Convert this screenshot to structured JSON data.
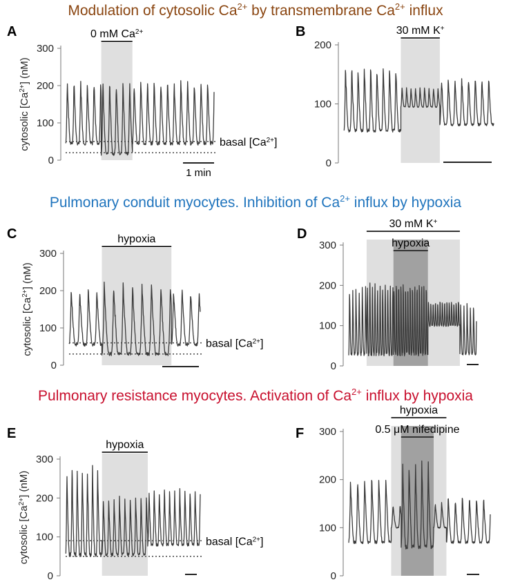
{
  "sections": [
    {
      "text": "Modulation of cytosolic Ca2+ by transmembrane Ca2+ influx",
      "color": "#8a4510"
    },
    {
      "text": "Pulmonary conduit myocytes. Inhibition of Ca2+ influx by hypoxia",
      "color": "#1f74bd"
    },
    {
      "text": "Pulmonary resistance myocytes. Activation of Ca2+ influx by hypoxia",
      "color": "#c8102e"
    }
  ],
  "chart_data": [
    {
      "id": "A",
      "panel_label": "A",
      "type": "line",
      "ylabel": "cytosolic [Ca2+] (nM)",
      "yticks": [
        0,
        100,
        200,
        300
      ],
      "ylim": [
        0,
        320
      ],
      "treatments": [
        {
          "label": "0 mM Ca2+",
          "start": 0.24,
          "end": 0.45
        }
      ],
      "basal_label": "basal [Ca2+]",
      "basal_values": [
        50,
        20
      ],
      "scale_bar": "1 min",
      "segments": [
        {
          "from": 0,
          "to": 0.24,
          "period": 0.045,
          "min": 45,
          "max": 225
        },
        {
          "from": 0.24,
          "to": 0.45,
          "period": 0.045,
          "min": 18,
          "max": 225
        },
        {
          "from": 0.45,
          "to": 1,
          "period": 0.045,
          "min": 45,
          "max": 225
        }
      ]
    },
    {
      "id": "B",
      "panel_label": "B",
      "type": "line",
      "ylabel": "",
      "yticks": [
        0,
        100,
        200
      ],
      "ylim": [
        0,
        210
      ],
      "treatments": [
        {
          "label": "30 mM K+",
          "start": 0.38,
          "end": 0.64
        }
      ],
      "scale_bar": "",
      "segments": [
        {
          "from": 0,
          "to": 0.38,
          "period": 0.042,
          "min": 55,
          "max": 170
        },
        {
          "from": 0.38,
          "to": 0.64,
          "period": 0.03,
          "min": 95,
          "max": 130
        },
        {
          "from": 0.64,
          "to": 1,
          "period": 0.045,
          "min": 65,
          "max": 150
        }
      ]
    },
    {
      "id": "C",
      "panel_label": "C",
      "type": "line",
      "ylabel": "cytosolic [Ca2+] (nM)",
      "yticks": [
        0,
        100,
        200,
        300
      ],
      "ylim": [
        0,
        320
      ],
      "treatments": [
        {
          "label": "hypoxia",
          "start": 0.25,
          "end": 0.78
        }
      ],
      "basal_label": "basal [Ca2+]",
      "basal_values": [
        60,
        30
      ],
      "scale_bar": "",
      "segments": [
        {
          "from": 0,
          "to": 0.25,
          "period": 0.065,
          "min": 55,
          "max": 210
        },
        {
          "from": 0.25,
          "to": 0.78,
          "period": 0.072,
          "min": 30,
          "max": 225
        },
        {
          "from": 0.78,
          "to": 1,
          "period": 0.065,
          "min": 55,
          "max": 210
        }
      ]
    },
    {
      "id": "D",
      "panel_label": "D",
      "type": "line",
      "ylabel": "",
      "yticks": [
        0,
        100,
        200,
        300
      ],
      "ylim": [
        0,
        320
      ],
      "treatments": [
        {
          "label": "30 mM K+",
          "start": 0.14,
          "end": 0.87
        },
        {
          "label": "hypoxia",
          "start": 0.35,
          "end": 0.62
        }
      ],
      "scale_bar": "",
      "segments": [
        {
          "from": 0,
          "to": 0.14,
          "period": 0.025,
          "min": 30,
          "max": 210
        },
        {
          "from": 0.14,
          "to": 0.35,
          "period": 0.02,
          "min": 30,
          "max": 240
        },
        {
          "from": 0.35,
          "to": 0.62,
          "period": 0.018,
          "min": 30,
          "max": 250
        },
        {
          "from": 0.62,
          "to": 0.87,
          "period": 0.018,
          "min": 100,
          "max": 175
        },
        {
          "from": 0.87,
          "to": 1,
          "period": 0.025,
          "min": 30,
          "max": 170
        }
      ]
    },
    {
      "id": "E",
      "panel_label": "E",
      "type": "line",
      "ylabel": "cytosolic [Ca2+] (nM)",
      "yticks": [
        0,
        100,
        200,
        300
      ],
      "ylim": [
        0,
        320
      ],
      "treatments": [
        {
          "label": "hypoxia",
          "start": 0.27,
          "end": 0.61
        }
      ],
      "basal_label": "basal [Ca2+]",
      "basal_values": [
        90,
        50
      ],
      "scale_bar": "",
      "segments": [
        {
          "from": 0,
          "to": 0.27,
          "period": 0.038,
          "min": 55,
          "max": 290
        },
        {
          "from": 0.27,
          "to": 0.61,
          "period": 0.04,
          "min": 55,
          "max": 210
        },
        {
          "from": 0.61,
          "to": 1,
          "period": 0.038,
          "min": 80,
          "max": 230
        }
      ]
    },
    {
      "id": "F",
      "panel_label": "F",
      "type": "line",
      "ylabel": "",
      "yticks": [
        0,
        100,
        200,
        300
      ],
      "ylim": [
        0,
        320
      ],
      "treatments": [
        {
          "label": "hypoxia",
          "start": 0.3,
          "end": 0.69
        },
        {
          "label": "0.5 μM nifedipine",
          "start": 0.37,
          "end": 0.6
        }
      ],
      "scale_bar": "",
      "segments": [
        {
          "from": 0,
          "to": 0.3,
          "period": 0.05,
          "min": 70,
          "max": 210
        },
        {
          "from": 0.3,
          "to": 0.37,
          "period": 0.05,
          "min": 100,
          "max": 150
        },
        {
          "from": 0.37,
          "to": 0.6,
          "period": 0.045,
          "min": 60,
          "max": 245
        },
        {
          "from": 0.6,
          "to": 0.69,
          "period": 0.045,
          "min": 100,
          "max": 155
        },
        {
          "from": 0.69,
          "to": 1,
          "period": 0.05,
          "min": 70,
          "max": 170
        }
      ]
    }
  ]
}
